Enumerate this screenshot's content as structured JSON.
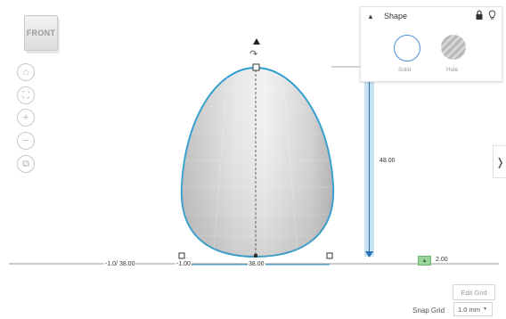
{
  "viewcube": {
    "face_label": "FRONT"
  },
  "view_tools": [
    {
      "name": "home-view-icon",
      "glyph": "⌂"
    },
    {
      "name": "fit-view-icon",
      "glyph": "⛶"
    },
    {
      "name": "zoom-in-icon",
      "glyph": "+"
    },
    {
      "name": "zoom-out-icon",
      "glyph": "−"
    },
    {
      "name": "orthographic-view-icon",
      "glyph": "⧉"
    }
  ],
  "shape_panel": {
    "title": "Shape",
    "solid_label": "Solid",
    "hole_label": "Hole",
    "accent_color": "#4a8fd6"
  },
  "dimensions": {
    "height": "48.00",
    "width": "38.00",
    "x_position": "-1.00",
    "ruler_left": "-1.0/ 38.00",
    "elevation": "2.00"
  },
  "grid": {
    "edit_label": "Edit Grid",
    "snap_label": "Snap Grid",
    "snap_value": "1.0 mm"
  },
  "colors": {
    "selection_outline": "#2c9ccf",
    "height_bar": "#bfe0f2",
    "elevation_tag": "#9ad39a"
  }
}
